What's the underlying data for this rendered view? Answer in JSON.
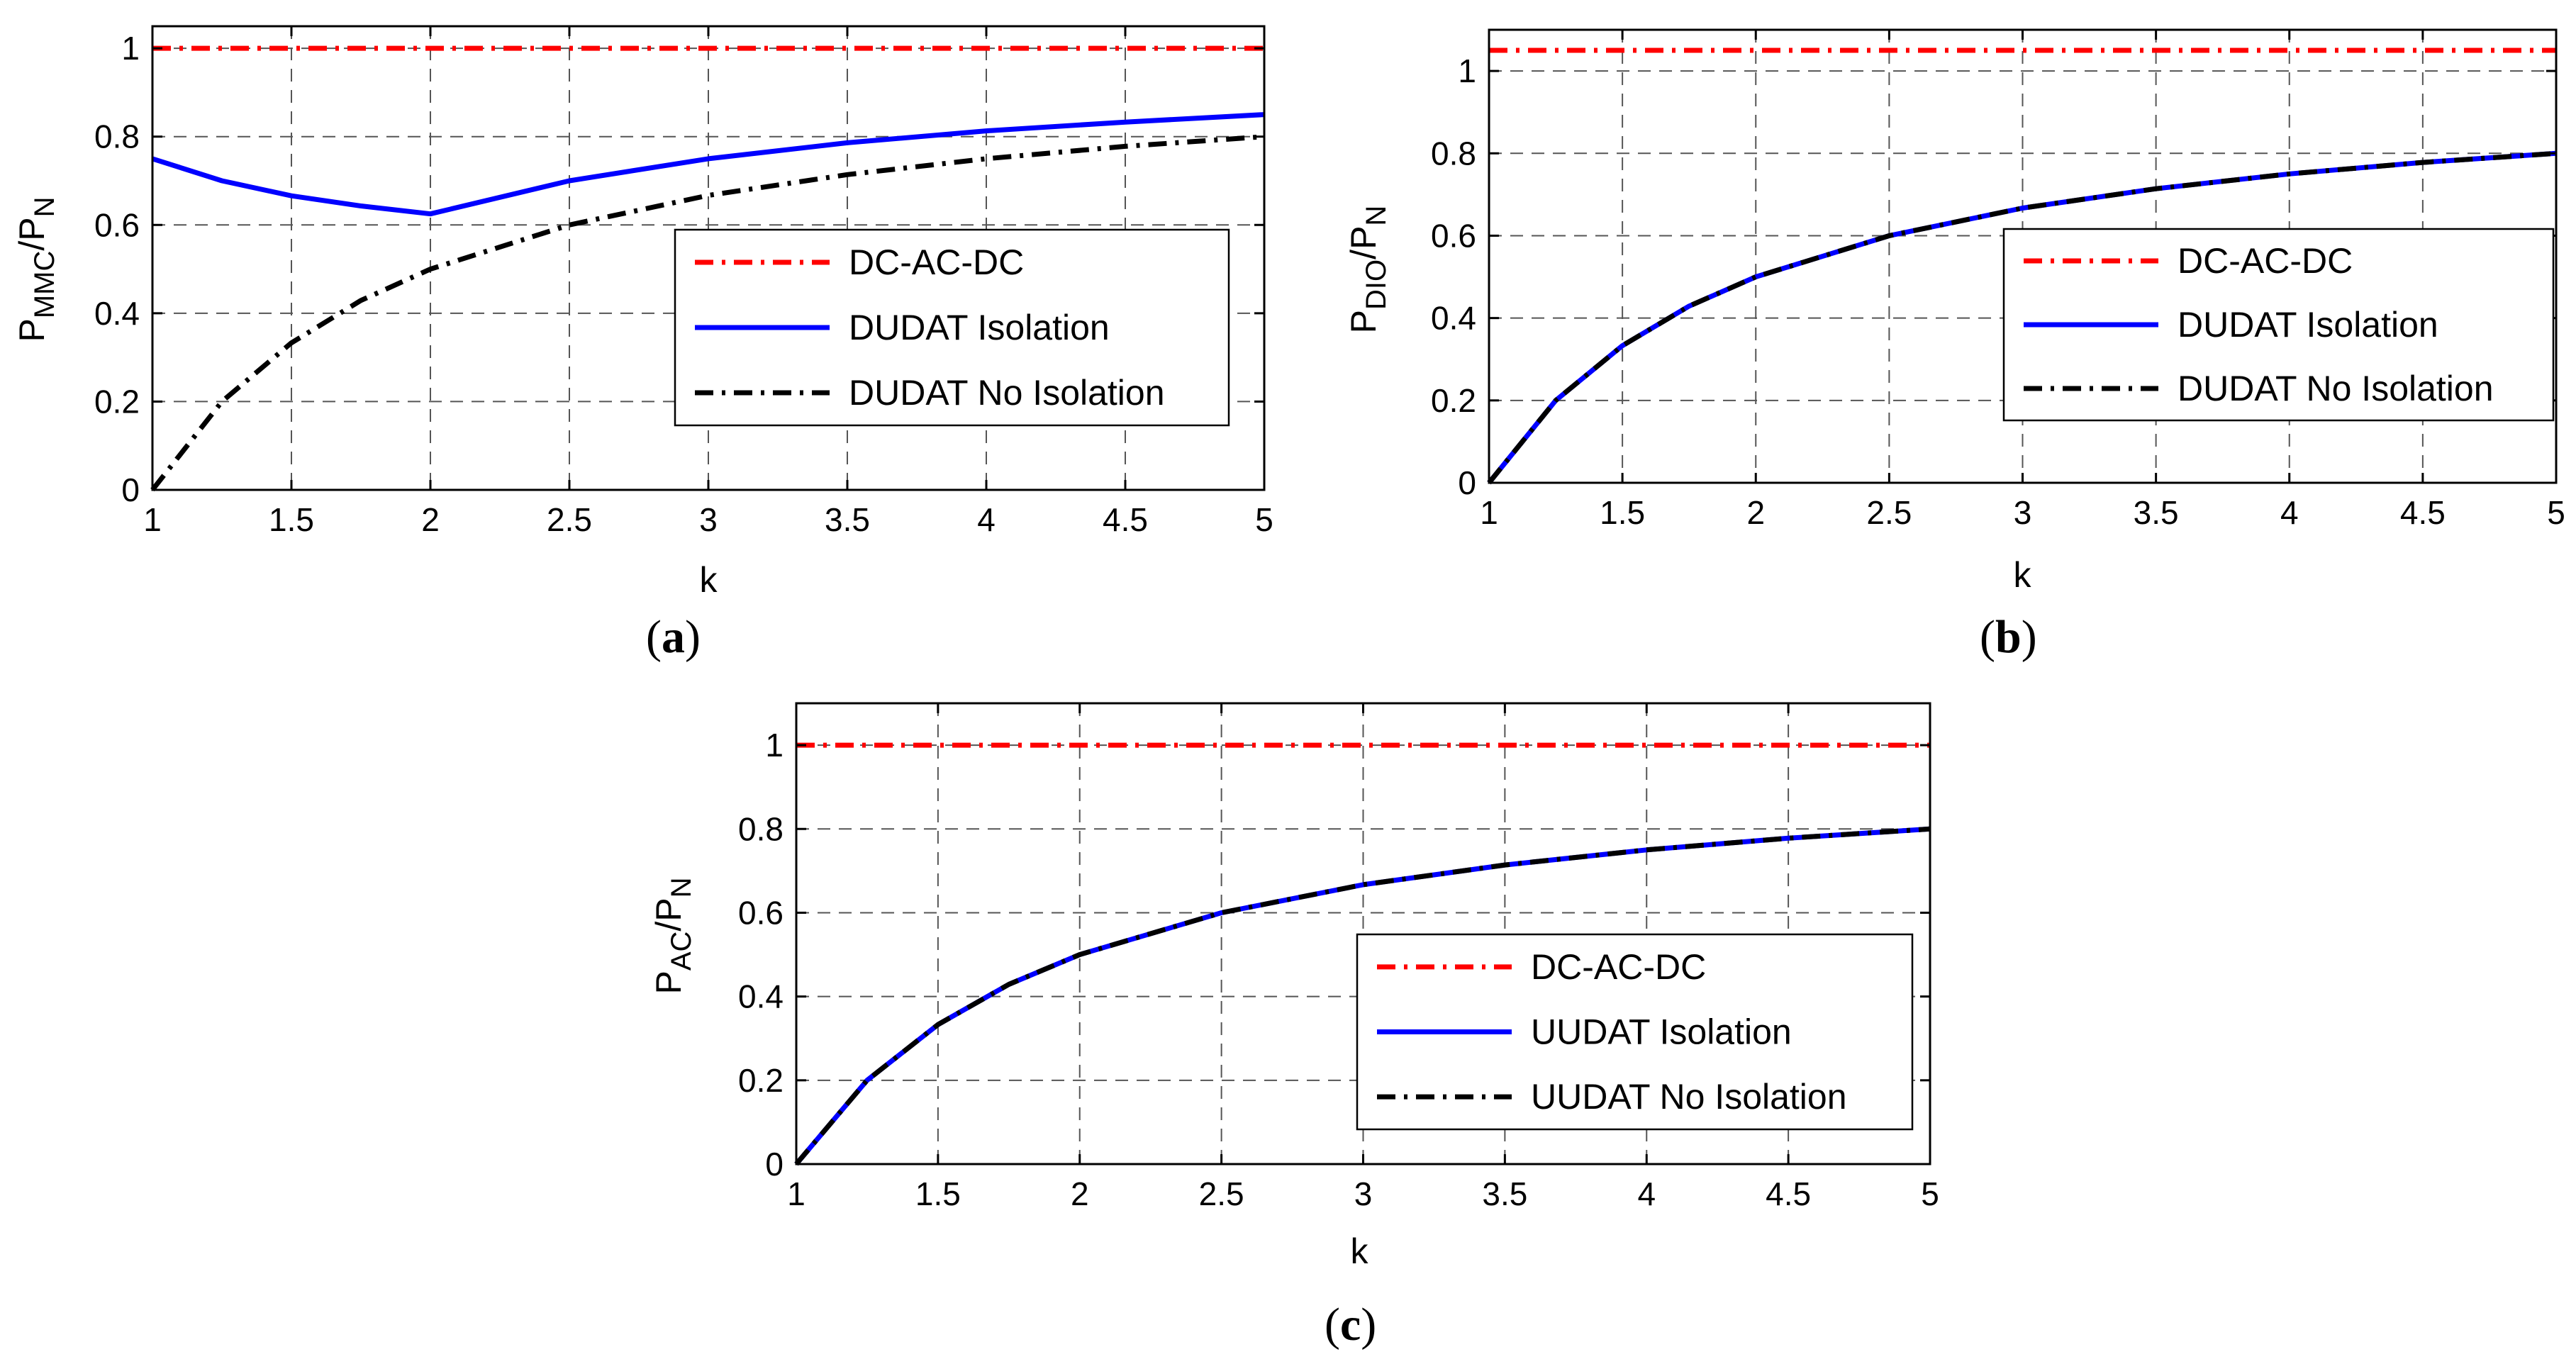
{
  "chart_data": [
    {
      "type": "line",
      "panel_label": "a",
      "xlabel": "k",
      "ylabel": {
        "main": "P",
        "sub": "MMC",
        "sep": "/P",
        "sub2": "N"
      },
      "xlim": [
        1,
        5
      ],
      "ylim": [
        0,
        1.05
      ],
      "xticks": [
        "1",
        "1.5",
        "2",
        "2.5",
        "3",
        "3.5",
        "4",
        "4.5",
        "5"
      ],
      "yticks": [
        "0",
        "0.2",
        "0.4",
        "0.6",
        "0.8",
        "1"
      ],
      "grid": true,
      "legend": "right-middle",
      "series": [
        {
          "name": "DC-AC-DC",
          "color": "#ff0000",
          "style": "dashdot",
          "x": [
            1,
            5
          ],
          "y": [
            1.0,
            1.0
          ]
        },
        {
          "name": "DUDAT Isolation",
          "color": "#0000ff",
          "style": "solid",
          "x": [
            1,
            1.25,
            1.5,
            1.75,
            2.0,
            2.5,
            3.0,
            3.5,
            4.0,
            4.5,
            5.0
          ],
          "y": [
            0.75,
            0.7,
            0.666,
            0.643,
            0.625,
            0.7,
            0.75,
            0.786,
            0.813,
            0.833,
            0.85
          ]
        },
        {
          "name": "DUDAT No Isolation",
          "color": "#000000",
          "style": "dashdot",
          "x": [
            1,
            1.25,
            1.5,
            1.75,
            2.0,
            2.5,
            3.0,
            3.5,
            4.0,
            4.5,
            5.0
          ],
          "y": [
            0.0,
            0.2,
            0.333,
            0.429,
            0.5,
            0.6,
            0.667,
            0.714,
            0.75,
            0.778,
            0.8
          ]
        }
      ]
    },
    {
      "type": "line",
      "panel_label": "b",
      "xlabel": "k",
      "ylabel": {
        "main": "P",
        "sub": "DIO",
        "sep": "/P",
        "sub2": "N"
      },
      "xlim": [
        1,
        5
      ],
      "ylim": [
        0,
        1.1
      ],
      "xticks": [
        "1",
        "1.5",
        "2",
        "2.5",
        "3",
        "3.5",
        "4",
        "4.5",
        "5"
      ],
      "yticks": [
        "0",
        "0.2",
        "0.4",
        "0.6",
        "0.8",
        "1"
      ],
      "grid": true,
      "legend": "right-middle",
      "series": [
        {
          "name": "DC-AC-DC",
          "color": "#ff0000",
          "style": "dashdot",
          "x": [
            1,
            5
          ],
          "y": [
            1.05,
            1.05
          ]
        },
        {
          "name": "DUDAT Isolation",
          "color": "#0000ff",
          "style": "solid",
          "x": [
            1,
            1.25,
            1.5,
            1.75,
            2.0,
            2.5,
            3.0,
            3.5,
            4.0,
            4.5,
            5.0
          ],
          "y": [
            0.0,
            0.2,
            0.333,
            0.429,
            0.5,
            0.6,
            0.667,
            0.714,
            0.75,
            0.778,
            0.8
          ]
        },
        {
          "name": "DUDAT No Isolation",
          "color": "#000000",
          "style": "dashdot",
          "x": [
            1,
            1.25,
            1.5,
            1.75,
            2.0,
            2.5,
            3.0,
            3.5,
            4.0,
            4.5,
            5.0
          ],
          "y": [
            0.0,
            0.2,
            0.333,
            0.429,
            0.5,
            0.6,
            0.667,
            0.714,
            0.75,
            0.778,
            0.8
          ]
        }
      ]
    },
    {
      "type": "line",
      "panel_label": "c",
      "xlabel": "k",
      "ylabel": {
        "main": "P",
        "sub": "AC",
        "sep": "/P",
        "sub2": "N"
      },
      "xlim": [
        1,
        5
      ],
      "ylim": [
        0,
        1.1
      ],
      "xticks": [
        "1",
        "1.5",
        "2",
        "2.5",
        "3",
        "3.5",
        "4",
        "4.5",
        "5"
      ],
      "yticks": [
        "0",
        "0.2",
        "0.4",
        "0.6",
        "0.8",
        "1"
      ],
      "grid": true,
      "legend": "right-middle",
      "series": [
        {
          "name": "DC-AC-DC",
          "color": "#ff0000",
          "style": "dashdot",
          "x": [
            1,
            5
          ],
          "y": [
            1.0,
            1.0
          ]
        },
        {
          "name": "UUDAT Isolation",
          "color": "#0000ff",
          "style": "solid",
          "x": [
            1,
            1.25,
            1.5,
            1.75,
            2.0,
            2.5,
            3.0,
            3.5,
            4.0,
            4.5,
            5.0
          ],
          "y": [
            0.0,
            0.2,
            0.333,
            0.429,
            0.5,
            0.6,
            0.667,
            0.714,
            0.75,
            0.778,
            0.8
          ]
        },
        {
          "name": "UUDAT No Isolation",
          "color": "#000000",
          "style": "dashdot",
          "x": [
            1,
            1.25,
            1.5,
            1.75,
            2.0,
            2.5,
            3.0,
            3.5,
            4.0,
            4.5,
            5.0
          ],
          "y": [
            0.0,
            0.2,
            0.333,
            0.429,
            0.5,
            0.6,
            0.667,
            0.714,
            0.75,
            0.778,
            0.8
          ]
        }
      ]
    }
  ]
}
